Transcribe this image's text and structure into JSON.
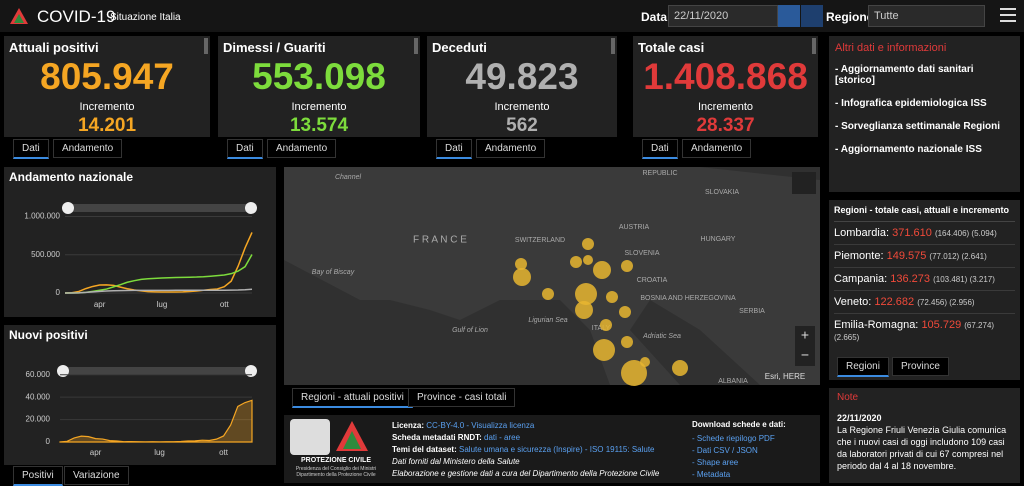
{
  "header": {
    "title": "COVID-19",
    "subtitle": "Situazione Italia",
    "date_label": "Data",
    "date": "22/11/2020",
    "region_label": "Regione",
    "region": "Tutte"
  },
  "stats": [
    {
      "title": "Attuali positivi",
      "value": "805.947",
      "increment_label": "Incremento",
      "increment": "14.201",
      "color": "#f5a623",
      "tabs": [
        "Dati",
        "Andamento"
      ]
    },
    {
      "title": "Dimessi / Guariti",
      "value": "553.098",
      "increment_label": "Incremento",
      "increment": "13.574",
      "color": "#7ddc3c",
      "tabs": [
        "Dati",
        "Andamento"
      ]
    },
    {
      "title": "Deceduti",
      "value": "49.823",
      "increment_label": "Incremento",
      "increment": "562",
      "color": "#b0b0b0",
      "tabs": [
        "Dati",
        "Andamento"
      ]
    },
    {
      "title": "Totale casi",
      "value": "1.408.868",
      "increment_label": "Incremento",
      "increment": "28.337",
      "color": "#e03a3a",
      "tabs": [
        "Dati",
        "Andamento"
      ]
    }
  ],
  "links": {
    "title": "Altri dati e informazioni",
    "items": [
      "- Aggiornamento dati sanitari [storico]",
      "- Infografica epidemiologica ISS",
      "- Sorveglianza settimanale Regioni",
      "- Aggiornamento nazionale ISS"
    ]
  },
  "regions": {
    "title": "Regioni - totale casi, attuali e incremento",
    "rows": [
      {
        "name": "Lombardia:",
        "total": "371.610",
        "detail": "(164.406) (5.094)"
      },
      {
        "name": "Piemonte:",
        "total": "149.575",
        "detail": "(77.012) (2.641)"
      },
      {
        "name": "Campania:",
        "total": "136.273",
        "detail": "(103.481) (3.217)"
      },
      {
        "name": "Veneto:",
        "total": "122.682",
        "detail": "(72.456) (2.956)"
      },
      {
        "name": "Emilia-Romagna:",
        "total": "105.729",
        "detail": "(67.274) (2.665)"
      }
    ],
    "tabs": [
      "Regioni",
      "Province"
    ]
  },
  "map": {
    "labels": [
      "Channel",
      "F R A N C E",
      "SWITZERLAND",
      "AUSTRIA",
      "SLOVENIA",
      "CROATIA",
      "HUNGARY",
      "SLOVAKIA",
      "REPUBLIC",
      "Bay of Biscay",
      "Ligurian Sea",
      "Gulf of Lion",
      "ITALY",
      "BOSNIA AND HERZEGOVINA",
      "SERBIA",
      "Adriatic Sea",
      "ALBANIA"
    ],
    "attribution": "Esri, HERE",
    "tabs": [
      "Regioni - attuali positivi",
      "Province - casi totali"
    ]
  },
  "info": {
    "logo_title": "PROTEZIONE CIVILE",
    "logo_caption": "Presidenza del Consiglio dei Ministri Dipartimento della Protezione Civile",
    "lines": [
      {
        "label": "Licenza:",
        "text": "CC-BY-4.0 - Visualizza licenza"
      },
      {
        "label": "Scheda metadati RNDT:",
        "text": "dati - aree"
      },
      {
        "label": "Temi del dataset:",
        "text": "Salute umana e sicurezza (Inspire) - ISO 19115: Salute"
      },
      {
        "label": "",
        "text": "Dati forniti dal Ministero della Salute"
      },
      {
        "label": "",
        "text": "Elaborazione e gestione dati a cura del Dipartimento della Protezione Civile"
      }
    ],
    "download_title": "Download schede e dati:",
    "downloads": [
      "- Schede riepilogo PDF",
      "- Dati CSV / JSON",
      "- Shape aree",
      "- Metadata"
    ]
  },
  "notes": {
    "title": "Note",
    "date": "22/11/2020",
    "text": "La Regione Friuli Venezia Giulia comunica che i nuovi casi di oggi includono 109 casi da laboratori privati di cui 67 compresi nel periodo dal 4 al 18 novembre."
  },
  "chart_tabs": [
    "Positivi",
    "Variazione"
  ],
  "chart_data": [
    {
      "type": "line",
      "title": "Andamento nazionale",
      "categories": [
        null,
        null,
        null,
        null,
        null,
        "apr",
        null,
        null,
        null,
        null,
        null,
        null,
        null,
        null,
        "lug",
        null,
        null,
        null,
        null,
        null,
        null,
        null,
        null,
        "ott",
        null,
        null,
        null,
        null
      ],
      "series": [
        {
          "name": "Attuali positivi",
          "color": "#f5a623",
          "values": [
            200,
            2700,
            20600,
            57500,
            85400,
            104300,
            106500,
            99000,
            76400,
            55300,
            39300,
            27500,
            18600,
            15000,
            13000,
            12400,
            12600,
            14100,
            19700,
            26800,
            35700,
            45500,
            53000,
            82800,
            155400,
            351400,
            590100,
            791700
          ]
        },
        {
          "name": "Dimessi / Guariti",
          "color": "#7ddc3c",
          "values": [
            0,
            300,
            2300,
            8300,
            20900,
            35400,
            51600,
            79900,
            109000,
            140500,
            160900,
            178500,
            186100,
            191000,
            196000,
            199800,
            201900,
            203800,
            206600,
            208500,
            213000,
            219600,
            226500,
            234700,
            252900,
            286000,
            344000,
            503000
          ]
        },
        {
          "name": "Deceduti",
          "color": "#b0b0b0",
          "values": [
            7,
            148,
            1800,
            7500,
            15400,
            21100,
            25900,
            29000,
            31400,
            32800,
            33600,
            34300,
            34700,
            34800,
            34900,
            35100,
            35200,
            35200,
            35400,
            35500,
            35600,
            35700,
            35900,
            36200,
            37300,
            38600,
            42300,
            48600
          ]
        }
      ],
      "ylim": [
        0,
        1150000
      ],
      "yticks": [
        0,
        {
          "value": 500000,
          "label": "500.000"
        },
        {
          "value": 1000000,
          "label": "1.000.000"
        }
      ]
    },
    {
      "type": "area",
      "title": "Nuovi positivi",
      "categories": [
        null,
        null,
        null,
        null,
        null,
        "apr",
        null,
        null,
        null,
        null,
        null,
        null,
        null,
        null,
        "lug",
        null,
        null,
        null,
        null,
        null,
        null,
        null,
        null,
        "ott",
        null,
        null,
        null,
        null
      ],
      "color": "#f5a623",
      "values": [
        90,
        590,
        3590,
        5210,
        4800,
        3000,
        2640,
        1220,
        890,
        300,
        330,
        220,
        120,
        220,
        170,
        280,
        240,
        480,
        950,
        1000,
        1600,
        1350,
        2550,
        5370,
        15200,
        31700,
        35100,
        37200
      ],
      "ylim": [
        0,
        66000
      ],
      "yticks": [
        0,
        {
          "value": 20000,
          "label": "20.000"
        },
        {
          "value": 40000,
          "label": "40.000"
        },
        {
          "value": 60000,
          "label": "60.000"
        }
      ]
    }
  ]
}
